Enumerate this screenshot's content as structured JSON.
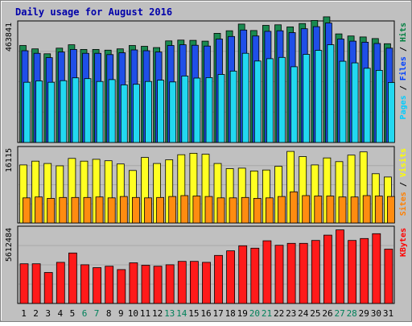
{
  "chart_data": {
    "type": "bar",
    "title": "Daily usage for August 2016",
    "categories": [
      "1",
      "2",
      "3",
      "4",
      "5",
      "6",
      "7",
      "8",
      "9",
      "10",
      "11",
      "12",
      "13",
      "14",
      "15",
      "16",
      "17",
      "18",
      "19",
      "20",
      "21",
      "22",
      "23",
      "24",
      "25",
      "26",
      "27",
      "28",
      "29",
      "30",
      "31"
    ],
    "weekend_days": [
      "6",
      "7",
      "13",
      "14",
      "20",
      "21",
      "27",
      "28"
    ],
    "panels": [
      {
        "id": "hits-files-pages",
        "max_label": "463841",
        "ymax": 463841,
        "legend": [
          {
            "label": "Pages",
            "color": "#00ccff"
          },
          {
            "label": "Files",
            "color": "#0040ff"
          },
          {
            "label": "Hits",
            "color": "#008040"
          }
        ],
        "series": [
          {
            "name": "Hits",
            "color": "#1a8a50",
            "values": [
              375000,
              362000,
              343000,
              365000,
              378000,
              360000,
              360000,
              357000,
              362000,
              375000,
              372000,
              367000,
              393000,
              396000,
              395000,
              392000,
              422000,
              432000,
              458000,
              433000,
              453000,
              455000,
              447000,
              460000,
              472000,
              486000,
              420000,
              412000,
              408000,
              402000,
              382000
            ]
          },
          {
            "name": "Files",
            "color": "#1f4fe8",
            "values": [
              355000,
              345000,
              328000,
              350000,
              360000,
              345000,
              345000,
              340000,
              347000,
              358000,
              355000,
              350000,
              375000,
              378000,
              376000,
              373000,
              400000,
              410000,
              435000,
              412000,
              430000,
              432000,
              425000,
              440000,
              448000,
              462000,
              400000,
              392000,
              388000,
              383000,
              365000
            ]
          },
          {
            "name": "Pages",
            "color": "#22d8f0",
            "values": [
              233000,
              238000,
              233000,
              239000,
              250000,
              247000,
              236000,
              243000,
              223000,
              225000,
              236000,
              241000,
              234000,
              257000,
              249000,
              251000,
              263000,
              276000,
              345000,
              315000,
              324000,
              329000,
              293000,
              341000,
              356000,
              378000,
              314000,
              308000,
              287000,
              279000,
              232000
            ]
          }
        ]
      },
      {
        "id": "visits-sites",
        "max_label": "16115",
        "ymax": 16115,
        "legend": [
          {
            "label": "Sites",
            "color": "#ff8000"
          },
          {
            "label": "Visits",
            "color": "#ffff00"
          }
        ],
        "series": [
          {
            "name": "Visits",
            "color": "#ffff22",
            "values": [
              12500,
              13300,
              12800,
              12300,
              13900,
              13300,
              13700,
              13400,
              12700,
              11300,
              14100,
              12800,
              13600,
              14700,
              15000,
              14800,
              12800,
              11700,
              11800,
              11200,
              11400,
              12200,
              15400,
              14300,
              12500,
              14000,
              13200,
              14600,
              15300,
              10600,
              9900
            ]
          },
          {
            "name": "Sites",
            "color": "#ff8c10",
            "values": [
              5400,
              5600,
              5300,
              5500,
              5500,
              5500,
              5600,
              5400,
              5700,
              5500,
              5400,
              5500,
              5700,
              5900,
              5800,
              5700,
              5400,
              5400,
              5500,
              5300,
              5400,
              5700,
              6700,
              5900,
              5800,
              5800,
              5600,
              5600,
              5900,
              5800,
              5700
            ]
          }
        ]
      },
      {
        "id": "kbytes",
        "max_label": "5612484",
        "ymax": 5612484,
        "legend": [
          {
            "label": "KBytes",
            "color": "#ff0000"
          }
        ],
        "series": [
          {
            "name": "KBytes",
            "color": "#ff1a1a",
            "values": [
              2944000,
              2944000,
              2297000,
              3053000,
              3741000,
              2872000,
              2656000,
              2764000,
              2513000,
              3017000,
              2836000,
              2764000,
              2872000,
              3125000,
              3125000,
              3053000,
              3562000,
              3903000,
              4280000,
              4101000,
              4651000,
              4316000,
              4460000,
              4460000,
              4676000,
              5068000,
              5458000,
              4676000,
              4820000,
              5175000,
              4028000
            ]
          }
        ]
      }
    ]
  }
}
